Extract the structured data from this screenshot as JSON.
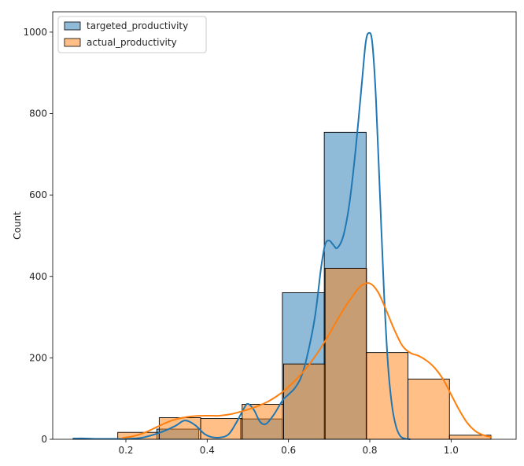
{
  "chart_data": {
    "type": "histogram",
    "title": "",
    "xlabel": "",
    "ylabel": "Count",
    "xlim": [
      0.02,
      1.16
    ],
    "ylim": [
      0,
      1050
    ],
    "x_ticks": [
      0.2,
      0.4,
      0.6,
      0.8,
      1.0
    ],
    "x_tick_labels": [
      "0.2",
      "0.4",
      "0.6",
      "0.8",
      "1.0"
    ],
    "y_ticks": [
      0,
      200,
      400,
      600,
      800,
      1000
    ],
    "y_tick_labels": [
      "0",
      "200",
      "400",
      "600",
      "800",
      "1000"
    ],
    "grid": false,
    "legend_position": "upper-left",
    "series": [
      {
        "name": "targeted_productivity",
        "color": "#1f77b4",
        "bins": [
          {
            "x0": 0.07,
            "x1": 0.173,
            "count": 2
          },
          {
            "x0": 0.173,
            "x1": 0.276,
            "count": 0
          },
          {
            "x0": 0.276,
            "x1": 0.379,
            "count": 25
          },
          {
            "x0": 0.379,
            "x1": 0.482,
            "count": 0
          },
          {
            "x0": 0.482,
            "x1": 0.585,
            "count": 50
          },
          {
            "x0": 0.585,
            "x1": 0.688,
            "count": 360
          },
          {
            "x0": 0.688,
            "x1": 0.791,
            "count": 754
          },
          {
            "x0": 0.791,
            "x1": 0.894,
            "count": 0
          }
        ],
        "kde": [
          [
            0.07,
            2
          ],
          [
            0.1,
            2
          ],
          [
            0.13,
            1
          ],
          [
            0.17,
            1
          ],
          [
            0.2,
            1
          ],
          [
            0.24,
            4
          ],
          [
            0.28,
            15
          ],
          [
            0.32,
            32
          ],
          [
            0.345,
            46
          ],
          [
            0.37,
            35
          ],
          [
            0.395,
            12
          ],
          [
            0.42,
            4
          ],
          [
            0.45,
            10
          ],
          [
            0.47,
            38
          ],
          [
            0.49,
            75
          ],
          [
            0.5,
            87
          ],
          [
            0.515,
            72
          ],
          [
            0.53,
            43
          ],
          [
            0.545,
            38
          ],
          [
            0.565,
            62
          ],
          [
            0.585,
            95
          ],
          [
            0.6,
            110
          ],
          [
            0.615,
            125
          ],
          [
            0.63,
            150
          ],
          [
            0.645,
            200
          ],
          [
            0.665,
            300
          ],
          [
            0.68,
            420
          ],
          [
            0.69,
            478
          ],
          [
            0.7,
            488
          ],
          [
            0.71,
            478
          ],
          [
            0.72,
            470
          ],
          [
            0.735,
            500
          ],
          [
            0.75,
            580
          ],
          [
            0.765,
            710
          ],
          [
            0.78,
            870
          ],
          [
            0.79,
            975
          ],
          [
            0.798,
            998
          ],
          [
            0.806,
            975
          ],
          [
            0.815,
            840
          ],
          [
            0.825,
            600
          ],
          [
            0.835,
            360
          ],
          [
            0.845,
            180
          ],
          [
            0.855,
            80
          ],
          [
            0.865,
            30
          ],
          [
            0.875,
            8
          ],
          [
            0.885,
            2
          ],
          [
            0.9,
            0
          ]
        ]
      },
      {
        "name": "actual_productivity",
        "color": "#ff7f0e",
        "bins": [
          {
            "x0": 0.18,
            "x1": 0.282,
            "count": 17
          },
          {
            "x0": 0.282,
            "x1": 0.384,
            "count": 53
          },
          {
            "x0": 0.384,
            "x1": 0.486,
            "count": 51
          },
          {
            "x0": 0.486,
            "x1": 0.588,
            "count": 86
          },
          {
            "x0": 0.588,
            "x1": 0.69,
            "count": 185
          },
          {
            "x0": 0.69,
            "x1": 0.792,
            "count": 420
          },
          {
            "x0": 0.792,
            "x1": 0.894,
            "count": 213
          },
          {
            "x0": 0.894,
            "x1": 0.996,
            "count": 148
          },
          {
            "x0": 0.996,
            "x1": 1.098,
            "count": 10
          }
        ],
        "kde": [
          [
            0.19,
            3
          ],
          [
            0.22,
            8
          ],
          [
            0.25,
            18
          ],
          [
            0.28,
            32
          ],
          [
            0.31,
            45
          ],
          [
            0.34,
            53
          ],
          [
            0.37,
            57
          ],
          [
            0.4,
            58
          ],
          [
            0.43,
            58
          ],
          [
            0.46,
            62
          ],
          [
            0.49,
            70
          ],
          [
            0.52,
            80
          ],
          [
            0.55,
            93
          ],
          [
            0.58,
            112
          ],
          [
            0.61,
            138
          ],
          [
            0.64,
            170
          ],
          [
            0.67,
            210
          ],
          [
            0.7,
            258
          ],
          [
            0.73,
            310
          ],
          [
            0.76,
            355
          ],
          [
            0.78,
            378
          ],
          [
            0.8,
            383
          ],
          [
            0.82,
            362
          ],
          [
            0.84,
            318
          ],
          [
            0.86,
            270
          ],
          [
            0.88,
            230
          ],
          [
            0.9,
            212
          ],
          [
            0.92,
            205
          ],
          [
            0.94,
            193
          ],
          [
            0.96,
            175
          ],
          [
            0.98,
            148
          ],
          [
            1.0,
            110
          ],
          [
            1.02,
            72
          ],
          [
            1.04,
            40
          ],
          [
            1.06,
            20
          ],
          [
            1.08,
            10
          ],
          [
            1.1,
            5
          ]
        ]
      }
    ]
  }
}
